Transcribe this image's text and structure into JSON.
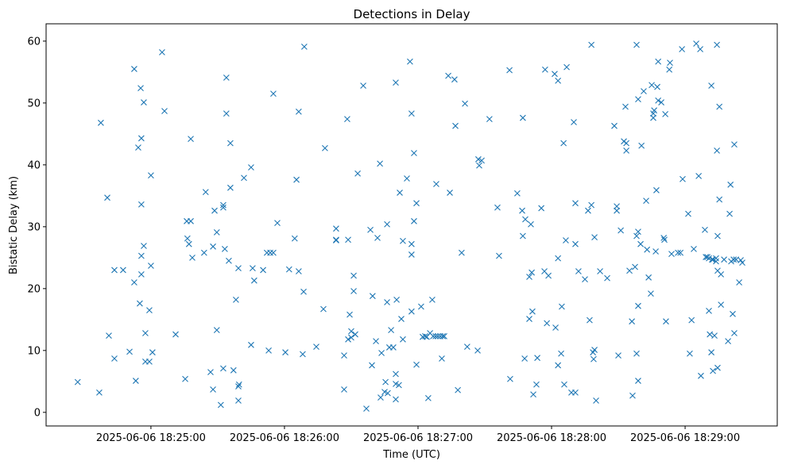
{
  "chart_data": {
    "type": "scatter",
    "title": "Detections in Delay",
    "xlabel": "Time (UTC)",
    "ylabel": "Bistatic Delay (km)",
    "x_units": "seconds since 2025-06-06 18:25:00",
    "xlim": [
      -47.1,
      281.4
    ],
    "ylim": [
      -2.2,
      62.8
    ],
    "grid": false,
    "marker": "x",
    "color": "#1f77b4",
    "x_ticks": [
      {
        "value": 0,
        "label": "2025-06-06 18:25:00"
      },
      {
        "value": 60,
        "label": "2025-06-06 18:26:00"
      },
      {
        "value": 120,
        "label": "2025-06-06 18:27:00"
      },
      {
        "value": 180,
        "label": "2025-06-06 18:28:00"
      },
      {
        "value": 240,
        "label": "2025-06-06 18:29:00"
      }
    ],
    "y_ticks": [
      {
        "value": 0,
        "label": "0"
      },
      {
        "value": 10,
        "label": "10"
      },
      {
        "value": 20,
        "label": "20"
      },
      {
        "value": 30,
        "label": "30"
      },
      {
        "value": 40,
        "label": "40"
      },
      {
        "value": 50,
        "label": "50"
      },
      {
        "value": 60,
        "label": "60"
      }
    ],
    "points": [
      [
        -32.9,
        4.9
      ],
      [
        -23.2,
        3.2
      ],
      [
        -22.5,
        46.8
      ],
      [
        -19.6,
        34.7
      ],
      [
        -18.9,
        12.4
      ],
      [
        -16.4,
        8.7
      ],
      [
        -16.4,
        23.0
      ],
      [
        -12.5,
        23.0
      ],
      [
        -9.6,
        9.8
      ],
      [
        -7.5,
        55.5
      ],
      [
        -7.5,
        21.0
      ],
      [
        -6.8,
        5.1
      ],
      [
        -5.7,
        42.8
      ],
      [
        -4.6,
        52.4
      ],
      [
        -4.3,
        44.3
      ],
      [
        -4.3,
        33.6
      ],
      [
        -5.0,
        17.6
      ],
      [
        -4.3,
        25.3
      ],
      [
        -4.3,
        22.3
      ],
      [
        -3.2,
        50.1
      ],
      [
        -3.2,
        26.9
      ],
      [
        -2.5,
        12.8
      ],
      [
        -2.5,
        8.2
      ],
      [
        -0.7,
        8.2
      ],
      [
        -0.7,
        16.5
      ],
      [
        0,
        38.3
      ],
      [
        0,
        23.7
      ],
      [
        0.7,
        9.7
      ],
      [
        5.0,
        58.2
      ],
      [
        6.1,
        48.7
      ],
      [
        11.1,
        12.6
      ],
      [
        15.4,
        5.4
      ],
      [
        16.1,
        30.9
      ],
      [
        16.4,
        28.1
      ],
      [
        17.1,
        27.2
      ],
      [
        17.9,
        30.9
      ],
      [
        17.9,
        44.2
      ],
      [
        18.6,
        25.0
      ],
      [
        23.9,
        25.8
      ],
      [
        24.6,
        35.6
      ],
      [
        26.8,
        6.5
      ],
      [
        27.9,
        3.7
      ],
      [
        27.9,
        26.8
      ],
      [
        28.6,
        32.6
      ],
      [
        29.6,
        13.3
      ],
      [
        29.6,
        29.1
      ],
      [
        31.4,
        1.2
      ],
      [
        32.5,
        33.1
      ],
      [
        32.5,
        7.1
      ],
      [
        32.5,
        33.5
      ],
      [
        33.2,
        26.4
      ],
      [
        33.9,
        54.1
      ],
      [
        33.9,
        48.3
      ],
      [
        35.0,
        24.5
      ],
      [
        35.7,
        43.5
      ],
      [
        35.7,
        36.3
      ],
      [
        37.1,
        6.8
      ],
      [
        38.2,
        18.2
      ],
      [
        39.3,
        4.2
      ],
      [
        39.3,
        1.9
      ],
      [
        39.3,
        23.3
      ],
      [
        39.6,
        4.5
      ],
      [
        41.8,
        37.9
      ],
      [
        45.0,
        39.6
      ],
      [
        45.0,
        10.9
      ],
      [
        46.4,
        21.3
      ],
      [
        45.7,
        23.3
      ],
      [
        50.4,
        23.0
      ],
      [
        52.1,
        25.8
      ],
      [
        53.6,
        25.8
      ],
      [
        52.9,
        10.0
      ],
      [
        55.0,
        51.5
      ],
      [
        55.0,
        25.8
      ],
      [
        56.8,
        30.6
      ],
      [
        60.4,
        9.7
      ],
      [
        62.1,
        23.1
      ],
      [
        64.6,
        28.1
      ],
      [
        65.4,
        37.6
      ],
      [
        66.4,
        48.6
      ],
      [
        66.4,
        22.8
      ],
      [
        68.2,
        9.4
      ],
      [
        68.6,
        19.5
      ],
      [
        68.9,
        59.1
      ],
      [
        74.3,
        10.6
      ],
      [
        77.5,
        16.7
      ],
      [
        78.2,
        42.7
      ],
      [
        83.2,
        27.9
      ],
      [
        83.2,
        29.7
      ],
      [
        83.2,
        27.8
      ],
      [
        86.8,
        3.7
      ],
      [
        86.8,
        9.2
      ],
      [
        88.2,
        47.4
      ],
      [
        88.6,
        27.9
      ],
      [
        88.6,
        11.8
      ],
      [
        89.3,
        15.8
      ],
      [
        90.0,
        12.1
      ],
      [
        90.0,
        13.1
      ],
      [
        91.1,
        22.1
      ],
      [
        91.1,
        19.6
      ],
      [
        91.8,
        12.6
      ],
      [
        92.9,
        38.6
      ],
      [
        95.4,
        52.8
      ],
      [
        96.8,
        0.6
      ],
      [
        98.6,
        29.5
      ],
      [
        99.3,
        7.6
      ],
      [
        99.6,
        18.8
      ],
      [
        101.1,
        11.5
      ],
      [
        101.8,
        28.2
      ],
      [
        102.9,
        40.2
      ],
      [
        103.2,
        2.4
      ],
      [
        103.6,
        9.6
      ],
      [
        105.0,
        3.3
      ],
      [
        105.4,
        4.9
      ],
      [
        106.4,
        3.1
      ],
      [
        106.1,
        17.8
      ],
      [
        106.1,
        30.4
      ],
      [
        107.1,
        10.5
      ],
      [
        107.9,
        13.3
      ],
      [
        108.9,
        10.5
      ],
      [
        110.0,
        53.3
      ],
      [
        110.4,
        18.2
      ],
      [
        110.0,
        4.6
      ],
      [
        110.0,
        6.2
      ],
      [
        110.0,
        2.1
      ],
      [
        111.4,
        4.4
      ],
      [
        111.8,
        35.5
      ],
      [
        112.5,
        15.1
      ],
      [
        113.2,
        27.7
      ],
      [
        113.2,
        11.8
      ],
      [
        115.0,
        37.8
      ],
      [
        116.4,
        56.7
      ],
      [
        117.1,
        48.3
      ],
      [
        117.1,
        27.2
      ],
      [
        117.1,
        25.5
      ],
      [
        117.1,
        16.3
      ],
      [
        118.2,
        30.9
      ],
      [
        118.2,
        41.9
      ],
      [
        119.3,
        33.8
      ],
      [
        119.3,
        7.7
      ],
      [
        121.4,
        17.1
      ],
      [
        122.1,
        12.2
      ],
      [
        123.2,
        12.3
      ],
      [
        123.9,
        12.2
      ],
      [
        124.6,
        2.3
      ],
      [
        125.4,
        12.8
      ],
      [
        126.4,
        18.2
      ],
      [
        126.8,
        12.3
      ],
      [
        128.2,
        36.9
      ],
      [
        127.9,
        12.3
      ],
      [
        128.9,
        12.3
      ],
      [
        130.0,
        12.3
      ],
      [
        130.7,
        8.7
      ],
      [
        131.1,
        12.3
      ],
      [
        131.8,
        12.3
      ],
      [
        133.6,
        54.4
      ],
      [
        134.3,
        35.5
      ],
      [
        136.4,
        53.8
      ],
      [
        136.8,
        46.3
      ],
      [
        137.9,
        3.6
      ],
      [
        139.6,
        25.8
      ],
      [
        141.1,
        49.9
      ],
      [
        142.1,
        10.6
      ],
      [
        146.8,
        10.0
      ],
      [
        147.1,
        40.9
      ],
      [
        147.5,
        39.9
      ],
      [
        148.6,
        40.7
      ],
      [
        152.1,
        47.4
      ],
      [
        155.7,
        33.1
      ],
      [
        156.4,
        25.3
      ],
      [
        161.1,
        55.3
      ],
      [
        161.4,
        5.4
      ],
      [
        164.6,
        35.4
      ],
      [
        166.8,
        32.6
      ],
      [
        167.1,
        47.6
      ],
      [
        167.1,
        28.5
      ],
      [
        167.9,
        8.7
      ],
      [
        168.2,
        31.2
      ],
      [
        170.0,
        21.9
      ],
      [
        170.0,
        15.1
      ],
      [
        170.7,
        30.4
      ],
      [
        171.1,
        22.6
      ],
      [
        171.4,
        16.3
      ],
      [
        171.8,
        2.9
      ],
      [
        173.2,
        4.5
      ],
      [
        173.6,
        8.8
      ],
      [
        175.4,
        33.0
      ],
      [
        176.8,
        22.8
      ],
      [
        177.1,
        55.4
      ],
      [
        177.9,
        14.4
      ],
      [
        178.6,
        22.1
      ],
      [
        181.4,
        54.7
      ],
      [
        181.8,
        13.7
      ],
      [
        182.9,
        24.9
      ],
      [
        182.9,
        7.6
      ],
      [
        182.9,
        53.6
      ],
      [
        184.3,
        9.5
      ],
      [
        184.6,
        17.1
      ],
      [
        185.4,
        43.5
      ],
      [
        185.7,
        4.5
      ],
      [
        186.4,
        27.8
      ],
      [
        186.8,
        55.8
      ],
      [
        188.9,
        3.2
      ],
      [
        190.0,
        46.9
      ],
      [
        190.7,
        33.8
      ],
      [
        190.7,
        27.2
      ],
      [
        190.7,
        3.2
      ],
      [
        192.1,
        22.8
      ],
      [
        195.0,
        21.5
      ],
      [
        196.4,
        32.6
      ],
      [
        197.1,
        14.9
      ],
      [
        197.9,
        33.5
      ],
      [
        197.9,
        59.4
      ],
      [
        198.6,
        9.7
      ],
      [
        198.9,
        8.6
      ],
      [
        199.3,
        28.3
      ],
      [
        199.3,
        10.1
      ],
      [
        200.0,
        1.9
      ],
      [
        201.8,
        22.8
      ],
      [
        205.0,
        21.7
      ],
      [
        208.2,
        46.3
      ],
      [
        209.3,
        33.3
      ],
      [
        209.3,
        32.6
      ],
      [
        210.0,
        9.2
      ],
      [
        211.1,
        29.4
      ],
      [
        212.5,
        43.8
      ],
      [
        213.2,
        49.4
      ],
      [
        213.6,
        43.5
      ],
      [
        213.6,
        42.3
      ],
      [
        215.0,
        22.9
      ],
      [
        216.1,
        14.7
      ],
      [
        216.4,
        2.7
      ],
      [
        217.5,
        23.5
      ],
      [
        218.2,
        9.5
      ],
      [
        218.2,
        59.4
      ],
      [
        218.2,
        28.5
      ],
      [
        218.9,
        29.2
      ],
      [
        218.9,
        17.2
      ],
      [
        218.9,
        5.1
      ],
      [
        218.9,
        50.6
      ],
      [
        220.0,
        27.2
      ],
      [
        220.4,
        43.1
      ],
      [
        221.4,
        51.9
      ],
      [
        222.5,
        34.2
      ],
      [
        222.9,
        26.3
      ],
      [
        223.6,
        21.8
      ],
      [
        224.6,
        19.2
      ],
      [
        225.0,
        52.9
      ],
      [
        225.7,
        48.3
      ],
      [
        225.7,
        47.6
      ],
      [
        226.1,
        48.8
      ],
      [
        226.8,
        26.0
      ],
      [
        227.1,
        35.9
      ],
      [
        227.5,
        52.6
      ],
      [
        227.9,
        50.4
      ],
      [
        227.9,
        56.7
      ],
      [
        229.3,
        50.1
      ],
      [
        230.4,
        28.2
      ],
      [
        230.7,
        27.9
      ],
      [
        231.1,
        48.2
      ],
      [
        231.4,
        14.7
      ],
      [
        232.9,
        55.4
      ],
      [
        233.2,
        56.5
      ],
      [
        233.9,
        25.6
      ],
      [
        236.8,
        25.8
      ],
      [
        237.9,
        25.8
      ],
      [
        238.6,
        58.7
      ],
      [
        238.9,
        37.7
      ],
      [
        241.4,
        32.1
      ],
      [
        242.1,
        9.5
      ],
      [
        242.9,
        14.9
      ],
      [
        243.9,
        26.4
      ],
      [
        245.0,
        59.6
      ],
      [
        246.1,
        38.2
      ],
      [
        246.8,
        58.7
      ],
      [
        247.1,
        5.9
      ],
      [
        248.9,
        29.5
      ],
      [
        249.3,
        25.1
      ],
      [
        250.0,
        25.1
      ],
      [
        250.7,
        24.9
      ],
      [
        250.7,
        16.4
      ],
      [
        251.1,
        12.6
      ],
      [
        251.8,
        52.8
      ],
      [
        251.8,
        9.7
      ],
      [
        252.1,
        24.7
      ],
      [
        252.5,
        6.7
      ],
      [
        252.5,
        24.7
      ],
      [
        253.2,
        12.4
      ],
      [
        253.9,
        24.4
      ],
      [
        253.9,
        24.9
      ],
      [
        254.3,
        59.4
      ],
      [
        254.3,
        42.3
      ],
      [
        254.6,
        28.5
      ],
      [
        254.6,
        22.9
      ],
      [
        254.6,
        7.2
      ],
      [
        255.4,
        34.4
      ],
      [
        255.4,
        49.4
      ],
      [
        256.1,
        17.4
      ],
      [
        256.1,
        22.3
      ],
      [
        257.5,
        24.7
      ],
      [
        259.3,
        11.5
      ],
      [
        260.0,
        32.1
      ],
      [
        260.4,
        36.8
      ],
      [
        260.7,
        24.4
      ],
      [
        261.4,
        15.9
      ],
      [
        261.8,
        24.7
      ],
      [
        262.1,
        43.3
      ],
      [
        262.1,
        12.8
      ],
      [
        262.9,
        24.7
      ],
      [
        264.3,
        21.0
      ],
      [
        265.0,
        24.6
      ],
      [
        265.7,
        24.2
      ]
    ]
  }
}
